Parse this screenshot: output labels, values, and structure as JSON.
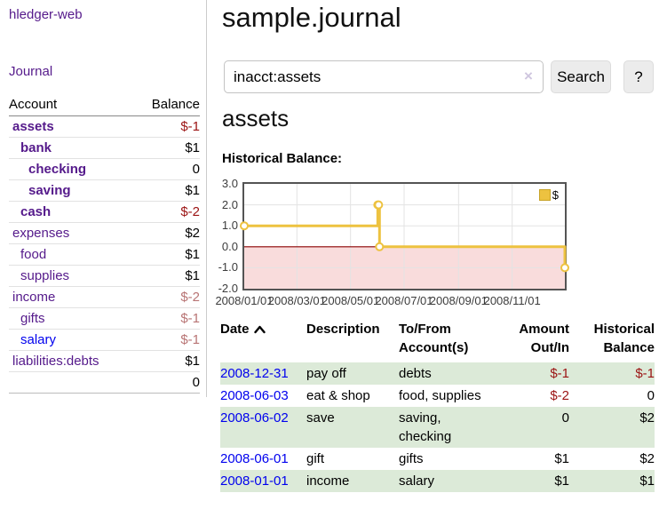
{
  "colors": {
    "link_purple": "#551a8b",
    "link_blue": "#0000ee",
    "negative_strong": "#9b1313",
    "negative_soft": "#b87474",
    "row_stripe_green": "#dcead8",
    "chart_line": "#edc240",
    "chart_negative_fill": "#f9dcdc",
    "chart_zero_line": "#8b0000",
    "chart_border": "#545454"
  },
  "sidebar": {
    "brand": "hledger-web",
    "journal_link": "Journal",
    "accounts": {
      "header_account": "Account",
      "header_balance": "Balance",
      "rows": [
        {
          "name": "assets",
          "indent": 0,
          "balance": "$-1"
        },
        {
          "name": "bank",
          "indent": 1,
          "balance": "$1"
        },
        {
          "name": "checking",
          "indent": 2,
          "balance": "0"
        },
        {
          "name": "saving",
          "indent": 2,
          "balance": "$1"
        },
        {
          "name": "cash",
          "indent": 1,
          "balance": "$-2"
        },
        {
          "name": "expenses",
          "indent": 0,
          "balance": "$2"
        },
        {
          "name": "food",
          "indent": 1,
          "balance": "$1"
        },
        {
          "name": "supplies",
          "indent": 1,
          "balance": "$1"
        },
        {
          "name": "income",
          "indent": 0,
          "balance": "$-2"
        },
        {
          "name": "gifts",
          "indent": 1,
          "balance": "$-1"
        },
        {
          "name": "salary",
          "indent": 1,
          "balance": "$-1"
        },
        {
          "name": "liabilities:debts",
          "indent": 0,
          "balance": "$1"
        }
      ],
      "total": "0"
    }
  },
  "main": {
    "title": "sample.journal",
    "search": {
      "value": "inacct:assets",
      "clear_icon": "×",
      "search_button": "Search",
      "help_button": "?"
    },
    "account_heading": "assets",
    "chart_label": "Historical Balance:"
  },
  "chart_data": {
    "type": "line",
    "step": true,
    "title": "Historical Balance",
    "x_range": [
      "2008-01-01",
      "2008-12-31"
    ],
    "ylim": [
      -2,
      3
    ],
    "yticks": [
      {
        "v": 3,
        "label": "3.0"
      },
      {
        "v": 2,
        "label": "2.0"
      },
      {
        "v": 1,
        "label": "1.0"
      },
      {
        "v": 0,
        "label": "0.0"
      },
      {
        "v": -1,
        "label": "-1.0"
      },
      {
        "v": -2,
        "label": "-2.0"
      }
    ],
    "xticks": [
      {
        "date": "2008-01-01",
        "label": "2008/01/01"
      },
      {
        "date": "2008-03-01",
        "label": "2008/03/01"
      },
      {
        "date": "2008-05-01",
        "label": "2008/05/01"
      },
      {
        "date": "2008-07-01",
        "label": "2008/07/01"
      },
      {
        "date": "2008-09-01",
        "label": "2008/09/01"
      },
      {
        "date": "2008-11-01",
        "label": "2008/11/01"
      }
    ],
    "series": [
      {
        "name": "$",
        "color": "#edc240",
        "points": [
          {
            "date": "2008-01-01",
            "value": 1
          },
          {
            "date": "2008-06-01",
            "value": 2
          },
          {
            "date": "2008-06-02",
            "value": 2
          },
          {
            "date": "2008-06-03",
            "value": 0
          },
          {
            "date": "2008-12-31",
            "value": -1
          }
        ]
      }
    ],
    "legend_position": "top-right",
    "grid": true
  },
  "register": {
    "headers": {
      "date": "Date",
      "description": "Description",
      "accounts": "To/From Account(s)",
      "amount": "Amount Out/In",
      "balance": "Historical Balance"
    },
    "rows": [
      {
        "date": "2008-12-31",
        "description": "pay off",
        "accounts": "debts",
        "amount": "$-1",
        "balance": "$-1"
      },
      {
        "date": "2008-06-03",
        "description": "eat & shop",
        "accounts": "food, supplies",
        "amount": "$-2",
        "balance": "0"
      },
      {
        "date": "2008-06-02",
        "description": "save",
        "accounts": "saving, checking",
        "amount": "0",
        "balance": "$2"
      },
      {
        "date": "2008-06-01",
        "description": "gift",
        "accounts": "gifts",
        "amount": "$1",
        "balance": "$2"
      },
      {
        "date": "2008-01-01",
        "description": "income",
        "accounts": "salary",
        "amount": "$1",
        "balance": "$1"
      }
    ]
  }
}
